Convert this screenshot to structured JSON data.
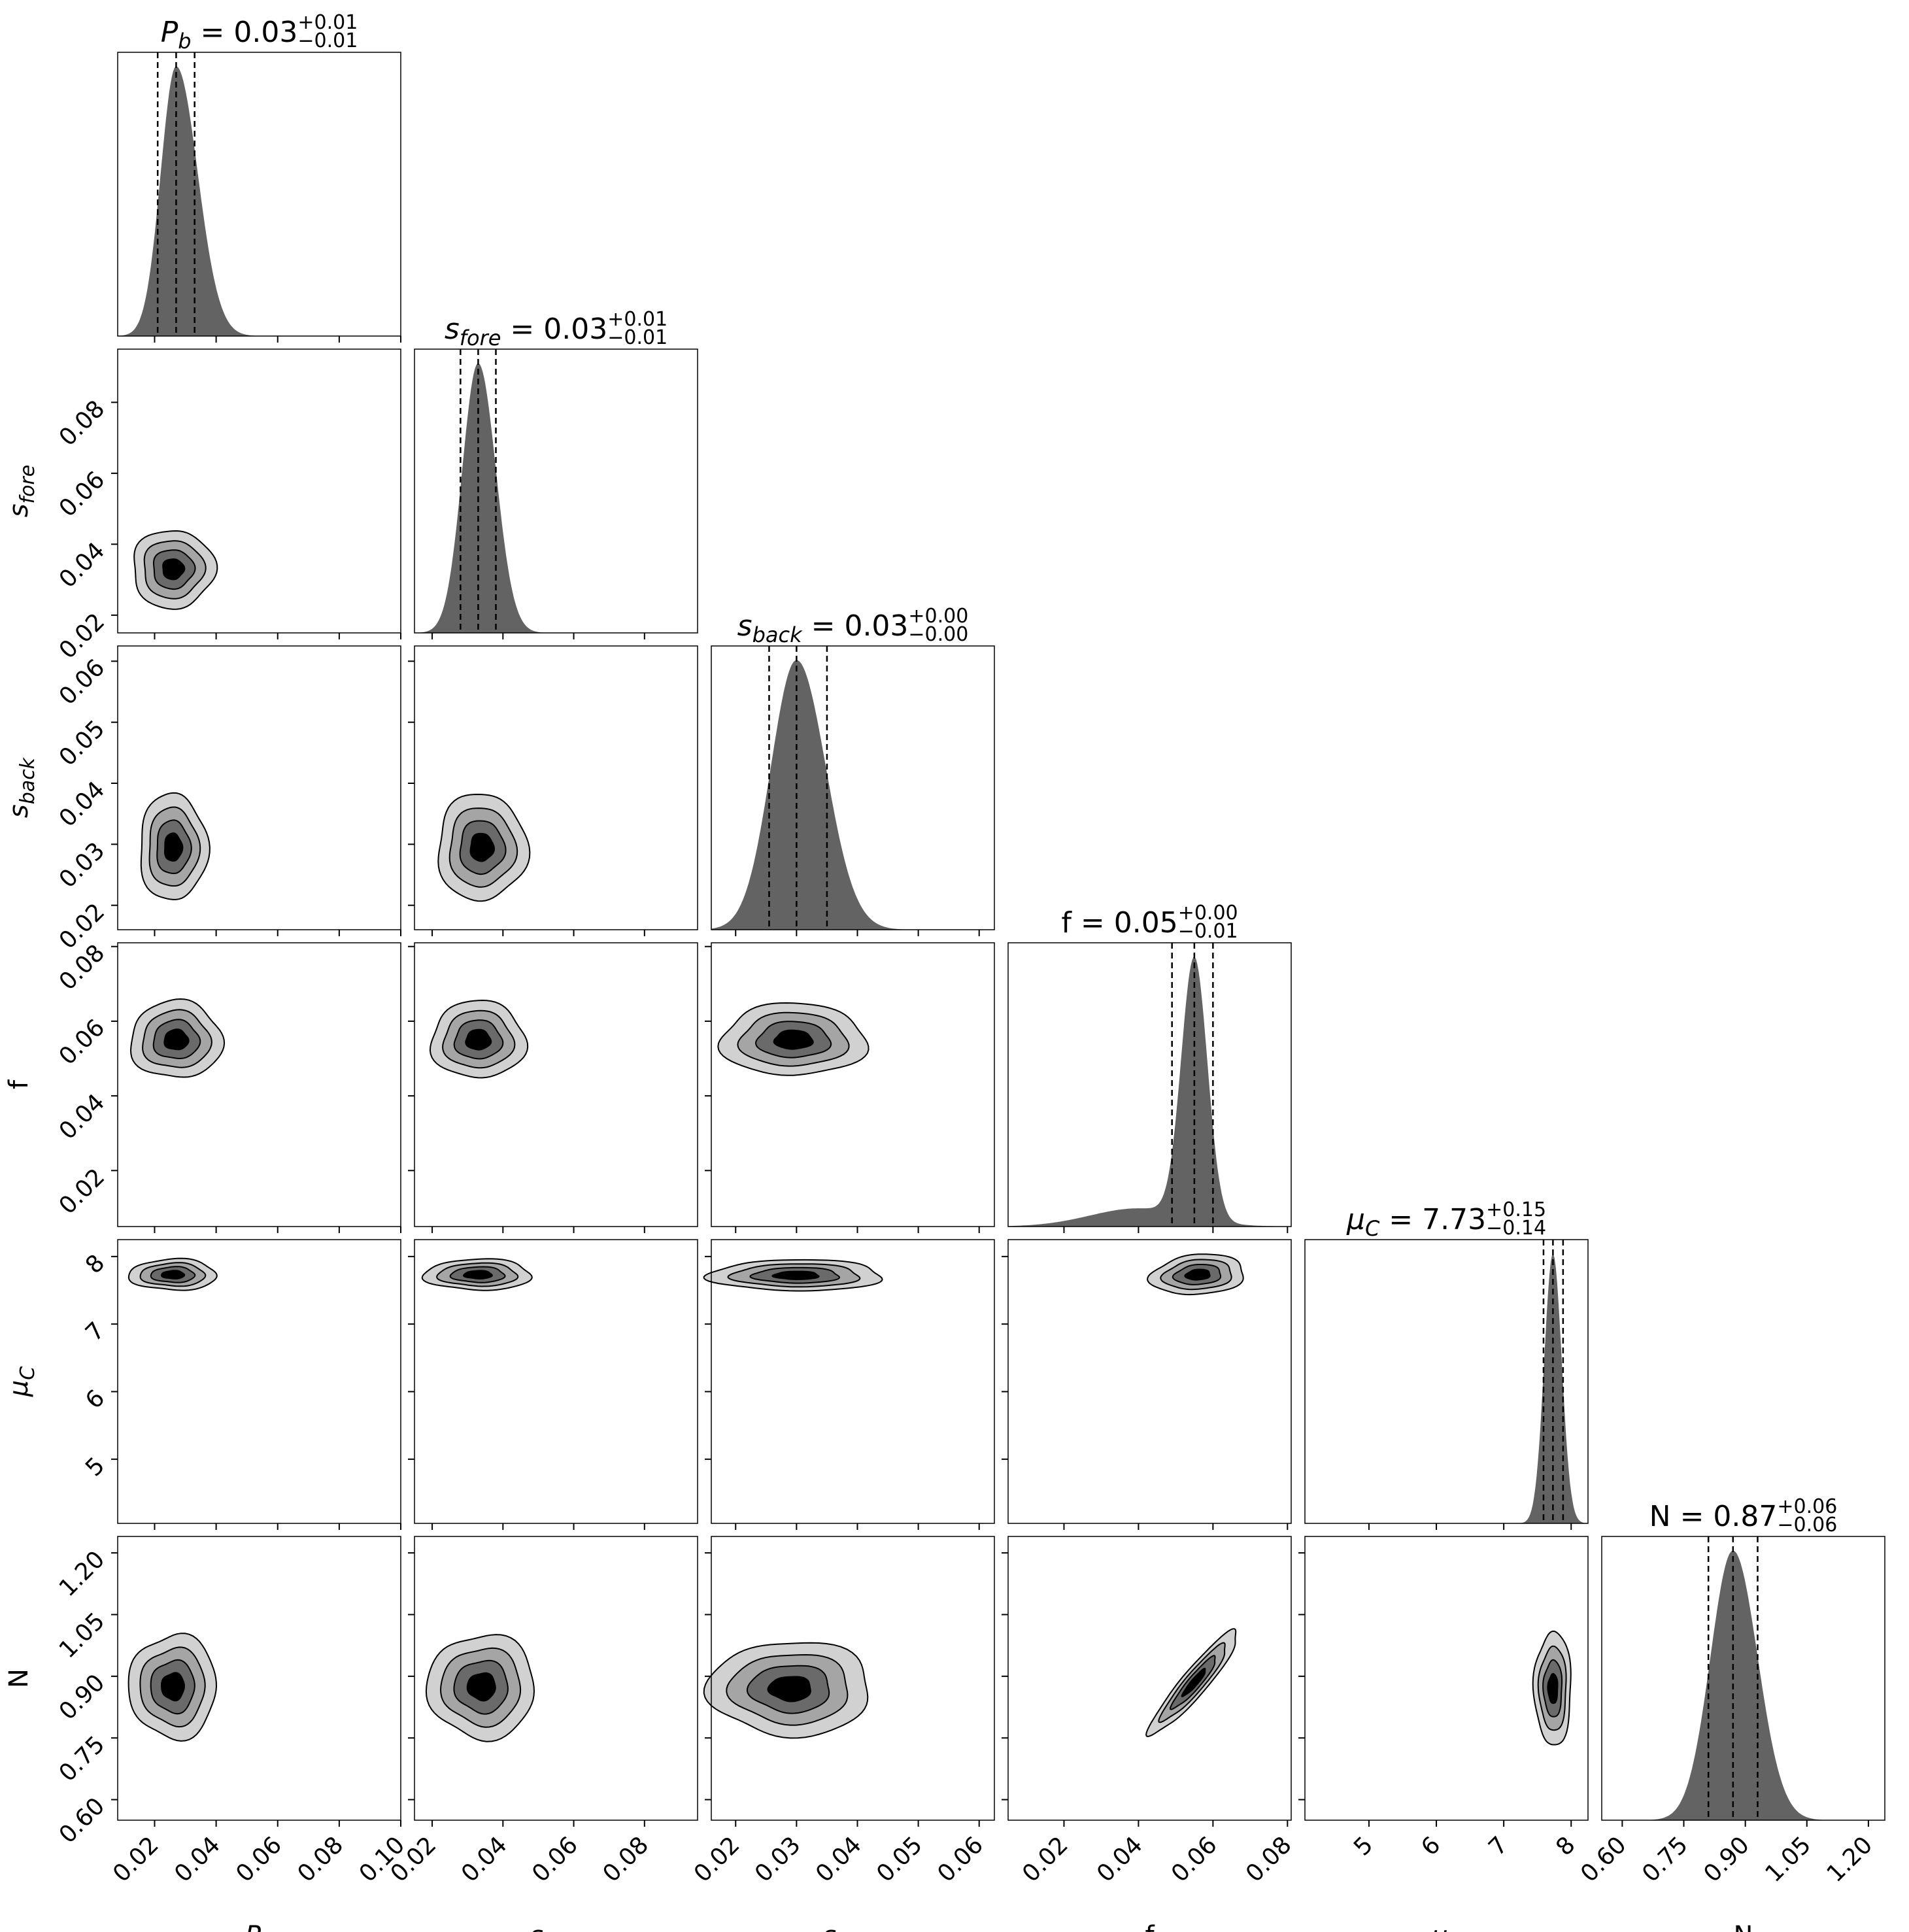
{
  "chart_data": {
    "type": "corner",
    "parameters": [
      {
        "key": "Pb",
        "label": "P",
        "sub": "b",
        "italic": true,
        "range": [
          0.008,
          0.1
        ],
        "ticks": [
          0.02,
          0.04,
          0.06,
          0.08,
          0.1
        ],
        "tick_labels": [
          "0.02",
          "0.04",
          "0.06",
          "0.08",
          "0.10"
        ]
      },
      {
        "key": "sfore",
        "label": "s",
        "sub": "fore",
        "italic": true,
        "range": [
          0.015,
          0.095
        ],
        "ticks": [
          0.02,
          0.04,
          0.06,
          0.08
        ],
        "tick_labels": [
          "0.02",
          "0.04",
          "0.06",
          "0.08"
        ]
      },
      {
        "key": "sback",
        "label": "s",
        "sub": "back",
        "italic": true,
        "range": [
          0.016,
          0.0625
        ],
        "ticks": [
          0.02,
          0.03,
          0.04,
          0.05,
          0.06
        ],
        "tick_labels": [
          "0.02",
          "0.03",
          "0.04",
          "0.05",
          "0.06"
        ]
      },
      {
        "key": "f",
        "label": "f",
        "sub": "",
        "italic": false,
        "range": [
          0.005,
          0.081
        ],
        "ticks": [
          0.02,
          0.04,
          0.06,
          0.08
        ],
        "tick_labels": [
          "0.02",
          "0.04",
          "0.06",
          "0.08"
        ]
      },
      {
        "key": "muC",
        "label": "μ",
        "sub": "C",
        "italic": true,
        "range": [
          4.05,
          8.25
        ],
        "ticks": [
          5,
          6,
          7,
          8
        ],
        "tick_labels": [
          "5",
          "6",
          "7",
          "8"
        ]
      },
      {
        "key": "N",
        "label": "N",
        "sub": "",
        "italic": false,
        "range": [
          0.55,
          1.24
        ],
        "ticks": [
          0.6,
          0.75,
          0.9,
          1.05,
          1.2
        ],
        "tick_labels": [
          "0.60",
          "0.75",
          "0.90",
          "1.05",
          "1.20"
        ]
      }
    ],
    "titles": [
      {
        "label": "P",
        "sub": "b",
        "italic": true,
        "value": "0.03",
        "plus": "+0.01",
        "minus": "−0.01"
      },
      {
        "label": "s",
        "sub": "fore",
        "italic": true,
        "value": "0.03",
        "plus": "+0.01",
        "minus": "−0.01"
      },
      {
        "label": "s",
        "sub": "back",
        "italic": true,
        "value": "0.03",
        "plus": "+0.00",
        "minus": "−0.00"
      },
      {
        "label": "f",
        "sub": "",
        "italic": false,
        "value": "0.05",
        "plus": "+0.00",
        "minus": "−0.01"
      },
      {
        "label": "μ",
        "sub": "C",
        "italic": true,
        "value": "7.73",
        "plus": "+0.15",
        "minus": "−0.14"
      },
      {
        "label": "N",
        "sub": "",
        "italic": false,
        "value": "0.87",
        "plus": "+0.06",
        "minus": "−0.06"
      }
    ],
    "histograms": [
      {
        "quantiles": [
          0.021,
          0.027,
          0.033
        ],
        "peak": 0.027,
        "wl": 0.005,
        "wr": 0.007,
        "tail": {
          "a": 0.0,
          "c": 0.0,
          "w": 0.0
        }
      },
      {
        "quantiles": [
          0.028,
          0.033,
          0.038
        ],
        "peak": 0.033,
        "wl": 0.0045,
        "wr": 0.005,
        "tail": {
          "a": 0.0,
          "c": 0.0,
          "w": 0.0
        }
      },
      {
        "quantiles": [
          0.0255,
          0.03,
          0.035
        ],
        "peak": 0.03,
        "wl": 0.0042,
        "wr": 0.0048,
        "tail": {
          "a": 0.0,
          "c": 0.0,
          "w": 0.0
        }
      },
      {
        "quantiles": [
          0.049,
          0.055,
          0.06
        ],
        "peak": 0.055,
        "wl": 0.0035,
        "wr": 0.0035,
        "tail": {
          "a": 0.07,
          "c": 0.04,
          "w": 0.013
        }
      },
      {
        "quantiles": [
          7.59,
          7.73,
          7.88
        ],
        "peak": 7.73,
        "wl": 0.13,
        "wr": 0.13,
        "tail": {
          "a": 0.0,
          "c": 0.0,
          "w": 0.0
        }
      },
      {
        "quantiles": [
          0.81,
          0.87,
          0.93
        ],
        "peak": 0.87,
        "wl": 0.055,
        "wr": 0.06,
        "tail": {
          "a": 0.0,
          "c": 0.0,
          "w": 0.0
        }
      }
    ],
    "contours": [
      {
        "row": 1,
        "col": 0,
        "center": [
          0.026,
          0.033
        ],
        "sd": [
          0.0058,
          0.0048
        ],
        "rho": 0.0
      },
      {
        "row": 2,
        "col": 0,
        "center": [
          0.026,
          0.0295
        ],
        "sd": [
          0.0048,
          0.0038
        ],
        "rho": 0.0
      },
      {
        "row": 2,
        "col": 1,
        "center": [
          0.034,
          0.0295
        ],
        "sd": [
          0.0055,
          0.0038
        ],
        "rho": 0.0
      },
      {
        "row": 3,
        "col": 0,
        "center": [
          0.027,
          0.055
        ],
        "sd": [
          0.0065,
          0.0045
        ],
        "rho": 0.0
      },
      {
        "row": 3,
        "col": 1,
        "center": [
          0.033,
          0.055
        ],
        "sd": [
          0.0058,
          0.0045
        ],
        "rho": 0.0
      },
      {
        "row": 3,
        "col": 2,
        "center": [
          0.0295,
          0.055
        ],
        "sd": [
          0.0052,
          0.0042
        ],
        "rho": 0.0
      },
      {
        "row": 4,
        "col": 0,
        "center": [
          0.026,
          7.73
        ],
        "sd": [
          0.0062,
          0.1
        ],
        "rho": 0.0
      },
      {
        "row": 4,
        "col": 1,
        "center": [
          0.033,
          7.73
        ],
        "sd": [
          0.0066,
          0.1
        ],
        "rho": 0.0
      },
      {
        "row": 4,
        "col": 2,
        "center": [
          0.03,
          7.72
        ],
        "sd": [
          0.0062,
          0.1
        ],
        "rho": 0.0
      },
      {
        "row": 4,
        "col": 3,
        "center": [
          0.056,
          7.73
        ],
        "sd": [
          0.0055,
          0.13
        ],
        "rho": 0.15
      },
      {
        "row": 5,
        "col": 0,
        "center": [
          0.026,
          0.875
        ],
        "sd": [
          0.0062,
          0.055
        ],
        "rho": 0.0
      },
      {
        "row": 5,
        "col": 1,
        "center": [
          0.034,
          0.875
        ],
        "sd": [
          0.0066,
          0.055
        ],
        "rho": 0.0
      },
      {
        "row": 5,
        "col": 2,
        "center": [
          0.029,
          0.87
        ],
        "sd": [
          0.0058,
          0.05
        ],
        "rho": 0.0
      },
      {
        "row": 5,
        "col": 3,
        "center": [
          0.055,
          0.885
        ],
        "sd": [
          0.0052,
          0.055
        ],
        "rho": 0.93
      },
      {
        "row": 5,
        "col": 4,
        "center": [
          7.73,
          0.87
        ],
        "sd": [
          0.12,
          0.06
        ],
        "rho": 0.0
      }
    ],
    "contour_levels": [
      0.6,
      1.15,
      1.7,
      2.3
    ],
    "contour_fills": [
      "#d1d1d1",
      "#a5a5a5",
      "#6a6a6a",
      "#000000"
    ],
    "hist_fill": "#636363",
    "grid": false,
    "legend": "none"
  }
}
